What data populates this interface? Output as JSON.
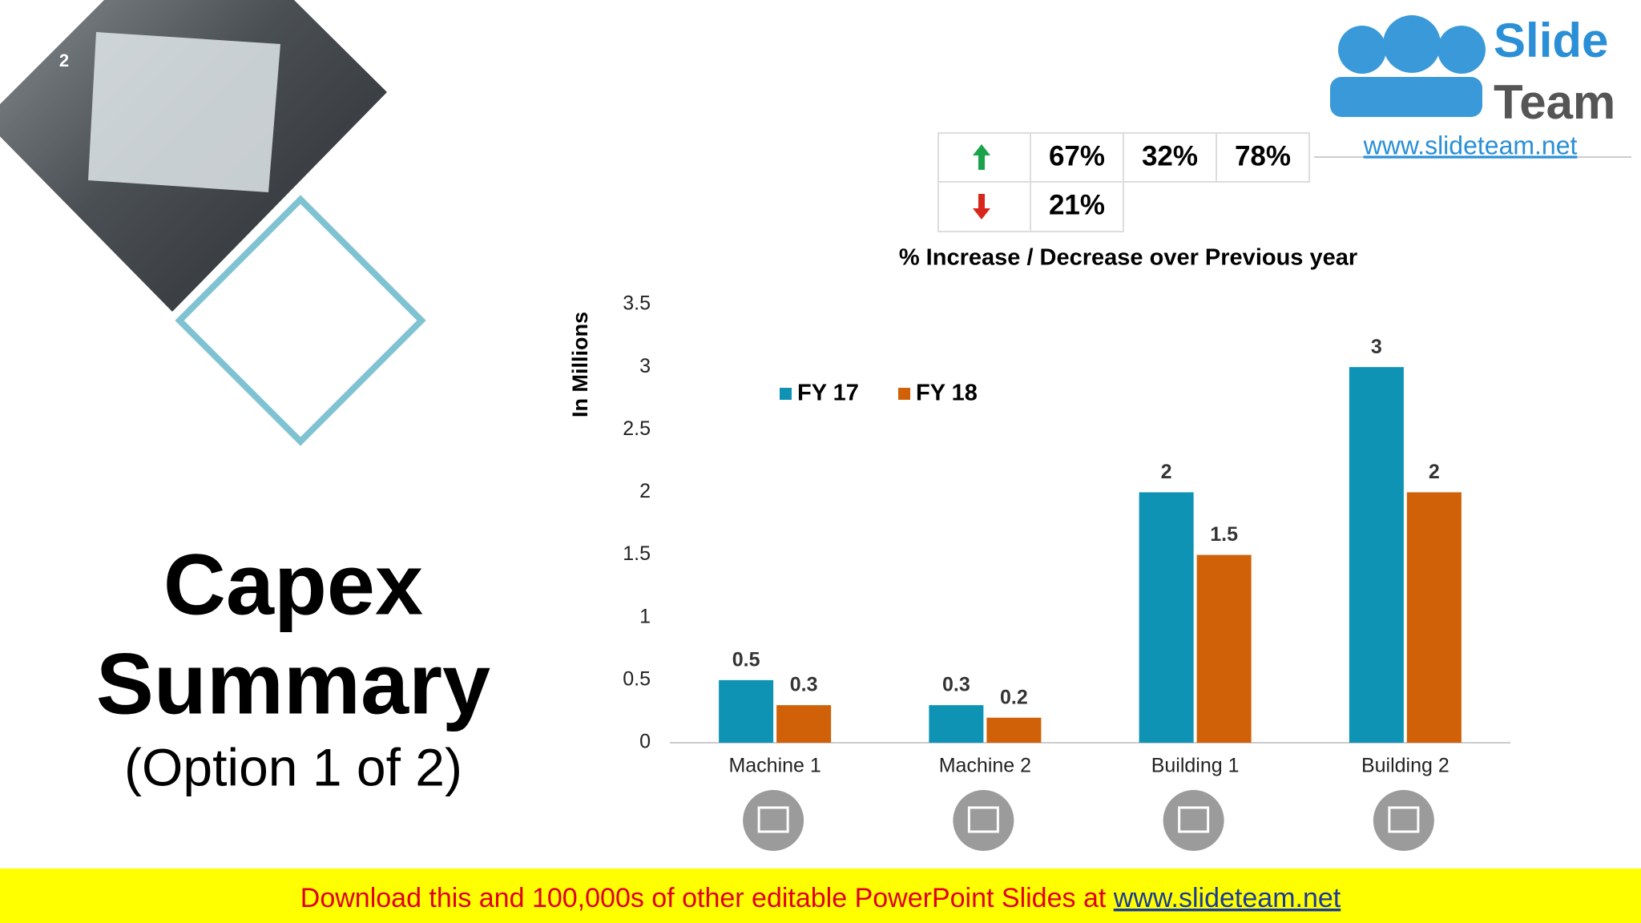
{
  "slide_number": "2",
  "title_lines": [
    "Capex",
    "Summary"
  ],
  "subtitle": "(Option 1 of 2)",
  "logo": {
    "line1": "Slide",
    "line2": "Team",
    "url": "www.slideteam.net"
  },
  "change_table": {
    "rows": [
      [
        "67%",
        "32%",
        "78%"
      ],
      [
        "21%"
      ]
    ],
    "caption": "% Increase / Decrease over Previous year"
  },
  "chart_data": {
    "type": "bar",
    "y_label": "In Millions",
    "categories": [
      "Machine 1",
      "Machine 2",
      "Building 1",
      "Building 2"
    ],
    "series": [
      {
        "name": "FY 17",
        "color": "#0e93b5",
        "values": [
          0.5,
          0.3,
          2,
          3
        ]
      },
      {
        "name": "FY 18",
        "color": "#d06108",
        "values": [
          0.3,
          0.2,
          1.5,
          2
        ]
      }
    ],
    "ylim": [
      0,
      3.5
    ],
    "yticks": [
      0,
      0.5,
      1,
      1.5,
      2,
      2.5,
      3,
      3.5
    ],
    "grid": false,
    "legend": "top-left"
  },
  "banner": {
    "text": "Download this and 100,000s of other editable PowerPoint Slides at",
    "url": "www.slideteam.net"
  }
}
